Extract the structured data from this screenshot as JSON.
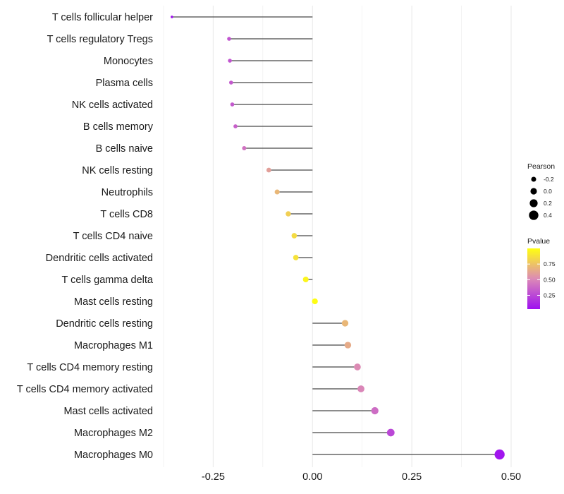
{
  "chart_data": {
    "type": "lollipop",
    "x": {
      "ticks": [
        -0.25,
        0.0,
        0.25,
        0.5
      ],
      "tick_labels": [
        "-0.25",
        "0.00",
        "0.25",
        "0.50"
      ],
      "xlim": [
        -0.375,
        0.5
      ]
    },
    "categories": [
      "T cells follicular helper",
      "T cells regulatory  Tregs",
      "Monocytes",
      "Plasma cells",
      "NK cells activated",
      "B cells memory",
      "B cells naive",
      "NK cells resting",
      "Neutrophils",
      "T cells CD8",
      "T cells CD4 naive",
      "Dendritic cells activated",
      "T cells gamma delta",
      "Mast cells resting",
      "Dendritic cells resting",
      "Macrophages M1",
      "T cells CD4 memory resting",
      "T cells CD4 memory activated",
      "Mast cells activated",
      "Macrophages M2",
      "Macrophages M0"
    ],
    "pearson": [
      -0.354,
      -0.21,
      -0.208,
      -0.205,
      -0.202,
      -0.194,
      -0.172,
      -0.11,
      -0.089,
      -0.061,
      -0.046,
      -0.042,
      -0.017,
      0.006,
      0.082,
      0.089,
      0.113,
      0.122,
      0.157,
      0.197,
      0.471
    ],
    "pvalue": [
      0.05,
      0.3,
      0.3,
      0.32,
      0.32,
      0.35,
      0.42,
      0.6,
      0.7,
      0.8,
      0.85,
      0.88,
      0.96,
      0.99,
      0.7,
      0.65,
      0.52,
      0.5,
      0.4,
      0.25,
      0.05
    ],
    "size_legend": {
      "title": "Pearson",
      "values": [
        -0.2,
        0.0,
        0.2,
        0.4
      ],
      "labels": [
        "-0.2",
        "0.0",
        "0.2",
        "0.4"
      ]
    },
    "color_legend": {
      "title": "Pvalue",
      "ticks": [
        0.75,
        0.5,
        0.25
      ],
      "labels": [
        "0.75",
        "0.50",
        "0.25"
      ],
      "range": [
        0.03,
        1.0
      ],
      "low_color": "#9e10f0",
      "mid_color": "#dc8ab6",
      "high_color": "#ffff10"
    },
    "stem_color": "#1a1a1a",
    "grid_color": "#ebebeb"
  }
}
